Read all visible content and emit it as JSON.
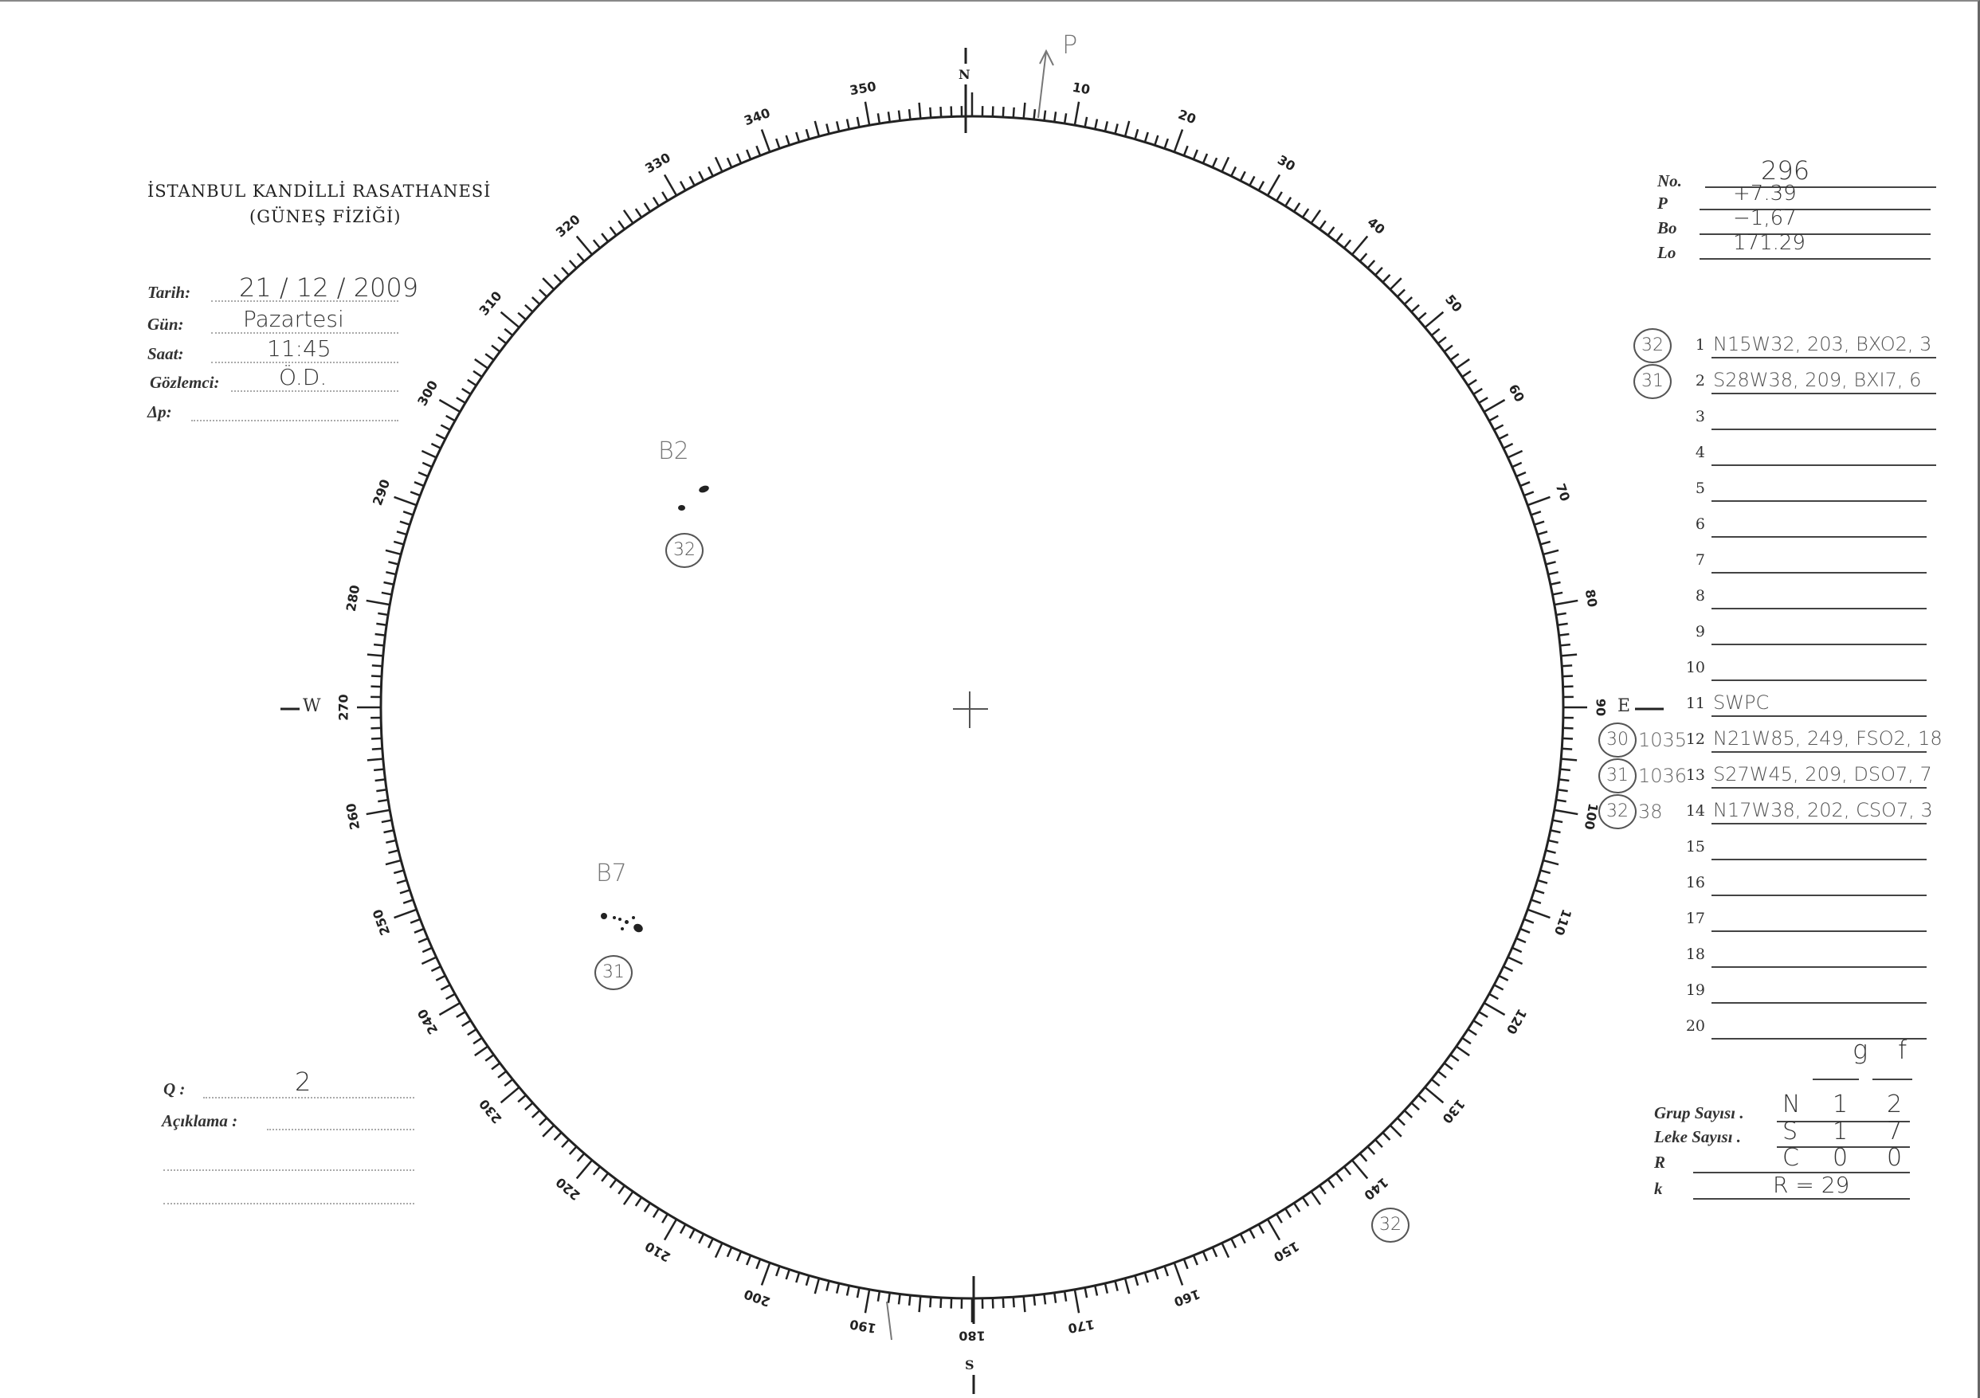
{
  "header": {
    "institution": "İSTANBUL KANDİLLİ RASATHANESİ",
    "department": "(GÜNEŞ FİZİĞİ)"
  },
  "fields": {
    "date_label": "Tarih:",
    "date_value": "21 / 12 / 2009",
    "day_label": "Gün:",
    "day_value": "Pazartesi",
    "time_label": "Saat:",
    "time_value": "11:45",
    "observer_label": "Gözlemci:",
    "observer_value": "Ö.D.",
    "dp_label": "Δp:",
    "dp_value": ""
  },
  "params": [
    {
      "label": "No.",
      "value": "296"
    },
    {
      "label": "P",
      "value": "+7.39"
    },
    {
      "label": "Bo",
      "value": "−1,67"
    },
    {
      "label": "Lo",
      "value": "171.29"
    }
  ],
  "rows": [
    {
      "n": "1",
      "text": "N15W32, 203, BXO2, 3",
      "zone": "32",
      "region": ""
    },
    {
      "n": "2",
      "text": "S28W38, 209, BXI7, 6",
      "zone": "31",
      "region": ""
    },
    {
      "n": "3",
      "text": "",
      "zone": "",
      "region": ""
    },
    {
      "n": "4",
      "text": "",
      "zone": "",
      "region": ""
    },
    {
      "n": "5",
      "text": "",
      "zone": "",
      "region": ""
    },
    {
      "n": "6",
      "text": "",
      "zone": "",
      "region": ""
    },
    {
      "n": "7",
      "text": "",
      "zone": "",
      "region": ""
    },
    {
      "n": "8",
      "text": "",
      "zone": "",
      "region": ""
    },
    {
      "n": "9",
      "text": "",
      "zone": "",
      "region": ""
    },
    {
      "n": "10",
      "text": "",
      "zone": "",
      "region": ""
    },
    {
      "n": "11",
      "text": "SWPC",
      "zone": "",
      "region": ""
    },
    {
      "n": "12",
      "text": "N21W85, 249, FSO2, 18",
      "zone": "30",
      "region": "1035"
    },
    {
      "n": "13",
      "text": "S27W45, 209, DSO7, 7",
      "zone": "31",
      "region": "1036"
    },
    {
      "n": "14",
      "text": "N17W38, 202, CSO7, 3",
      "zone": "32",
      "region": "38"
    },
    {
      "n": "15",
      "text": "",
      "zone": "",
      "region": ""
    },
    {
      "n": "16",
      "text": "",
      "zone": "",
      "region": ""
    },
    {
      "n": "17",
      "text": "",
      "zone": "",
      "region": ""
    },
    {
      "n": "18",
      "text": "",
      "zone": "",
      "region": ""
    },
    {
      "n": "19",
      "text": "",
      "zone": "",
      "region": ""
    },
    {
      "n": "20",
      "text": "",
      "zone": "",
      "region": ""
    }
  ],
  "summary": {
    "col_g": "g",
    "col_f": "f",
    "group_label": "Grup Sayısı .",
    "leke_label": "Leke Sayısı .",
    "r_label": "R",
    "k_label": "k",
    "n_row": [
      "N",
      "1",
      "2"
    ],
    "s_row": [
      "S",
      "1",
      "7"
    ],
    "c_row": [
      "C",
      "0",
      "0"
    ],
    "r_value": "R = 29"
  },
  "quality": {
    "q_label": "Q :",
    "q_value": "2",
    "note_label": "Açıklama :",
    "note_value": ""
  },
  "disk": {
    "north": "N",
    "south": "S",
    "east": "E",
    "west": "W",
    "p_label": "P",
    "scale_labels": [
      "10",
      "20",
      "30",
      "40",
      "50",
      "60",
      "70",
      "80",
      "90",
      "100",
      "110",
      "120",
      "130",
      "140",
      "150",
      "160",
      "170",
      "180",
      "190",
      "200",
      "210",
      "220",
      "230",
      "240",
      "250",
      "260",
      "270",
      "280",
      "290",
      "300",
      "310",
      "320",
      "330",
      "340",
      "350"
    ],
    "groups": [
      {
        "class": "B2",
        "zone": "32"
      },
      {
        "class": "B7",
        "zone": "31"
      }
    ],
    "outer_zone": "32"
  }
}
